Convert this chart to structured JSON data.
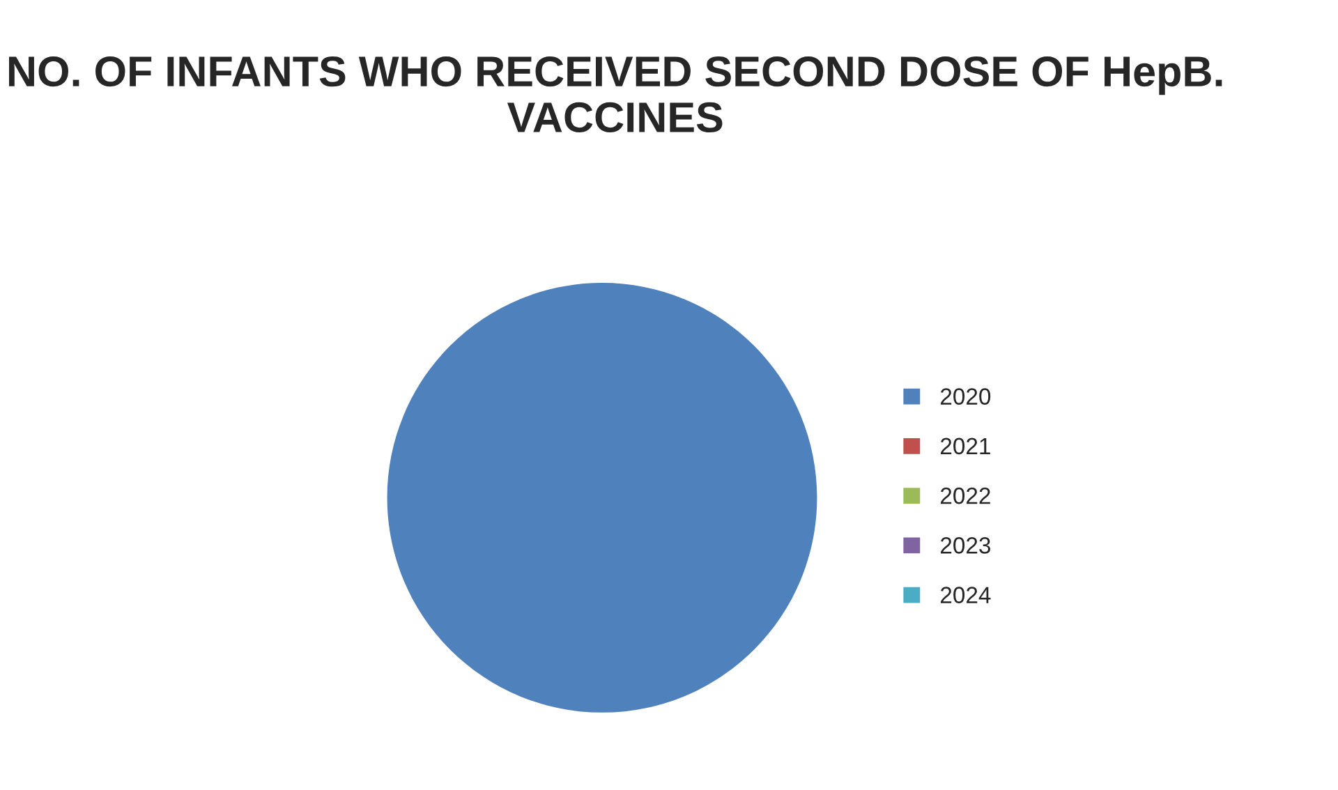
{
  "chart_data": {
    "type": "pie",
    "title": "NO. OF INFANTS WHO RECEIVED SECOND DOSE OF HepB. VACCINES",
    "categories": [
      "2020",
      "2021",
      "2022",
      "2023",
      "2024"
    ],
    "values": [
      100,
      0,
      0,
      0,
      0
    ],
    "colors": [
      "#4f81bd",
      "#c0504d",
      "#9bbb59",
      "#8064a2",
      "#4bacc6"
    ],
    "legend": "right"
  }
}
